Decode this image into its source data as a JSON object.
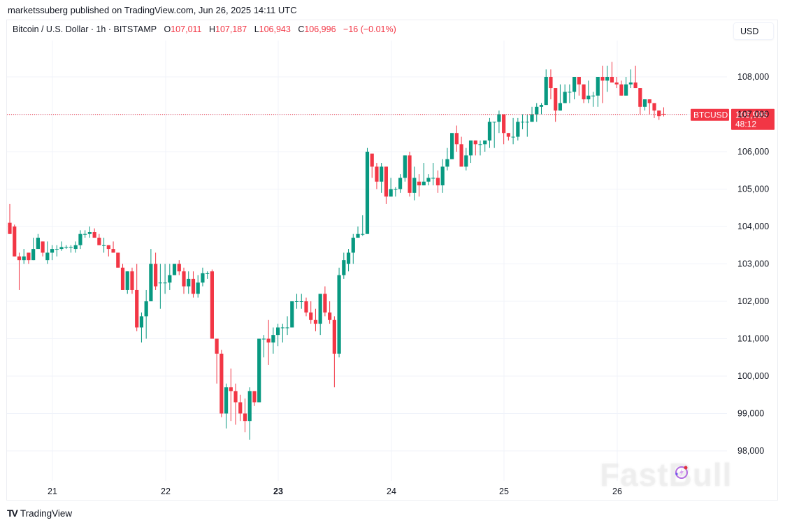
{
  "header": {
    "publisher_line": "marketssuberg published on TradingView.com, Jun 26, 2025 14:11 UTC"
  },
  "legend": {
    "symbol_line": "Bitcoin / U.S. Dollar · 1h · BITSTAMP",
    "open_label": "O",
    "open": "107,011",
    "high_label": "H",
    "high": "107,187",
    "low_label": "L",
    "low": "106,943",
    "close_label": "C",
    "close": "106,996",
    "change": "−16 (−0.01%)"
  },
  "currency_button": "USD",
  "price_tag": {
    "symbol": "BTCUSD",
    "price": "106,996",
    "countdown": "48:12"
  },
  "footer": {
    "brand": "TradingView",
    "logo": "TV"
  },
  "watermark": "FastBull",
  "colors": {
    "up": "#089981",
    "down": "#f23645",
    "grid": "#f0f3fa",
    "text": "#131722"
  },
  "chart_data": {
    "type": "candlestick",
    "title": "Bitcoin / U.S. Dollar · 1h · BITSTAMP",
    "xlabel": "",
    "ylabel": "USD",
    "ylim": [
      97200,
      108900
    ],
    "y_ticks": [
      98000,
      99000,
      100000,
      101000,
      102000,
      103000,
      104000,
      105000,
      106000,
      107000,
      108000
    ],
    "y_tick_labels": [
      "98,000",
      "99,000",
      "100,000",
      "101,000",
      "102,000",
      "103,000",
      "104,000",
      "105,000",
      "106,000",
      "107,000",
      "108,000"
    ],
    "x_ticks": [
      {
        "label": "21",
        "x": 75,
        "bold": false
      },
      {
        "label": "22",
        "x": 237,
        "bold": false
      },
      {
        "label": "23",
        "x": 398,
        "bold": true
      },
      {
        "label": "24",
        "x": 560,
        "bold": false
      },
      {
        "label": "25",
        "x": 721,
        "bold": false
      },
      {
        "label": "26",
        "x": 883,
        "bold": false
      }
    ],
    "grid": true,
    "last_price": 106996,
    "candle_start_x": 14,
    "candle_spacing": 6.73,
    "ohlc": [
      [
        104100,
        104600,
        103800,
        103800
      ],
      [
        104000,
        104050,
        103200,
        103200
      ],
      [
        103200,
        103300,
        102300,
        103100
      ],
      [
        103100,
        103400,
        103000,
        103200
      ],
      [
        103300,
        103300,
        103000,
        103100
      ],
      [
        103100,
        103700,
        103100,
        103400
      ],
      [
        103400,
        103800,
        103500,
        103700
      ],
      [
        103600,
        103600,
        103200,
        103300
      ],
      [
        103100,
        103600,
        103000,
        103300
      ],
      [
        103300,
        103500,
        103100,
        103400
      ],
      [
        103400,
        103500,
        103200,
        103400
      ],
      [
        103400,
        103600,
        103350,
        103450
      ],
      [
        103450,
        103500,
        103400,
        103450
      ],
      [
        103450,
        103500,
        103300,
        103450
      ],
      [
        103400,
        103600,
        103300,
        103500
      ],
      [
        103500,
        103900,
        103400,
        103800
      ],
      [
        103800,
        103900,
        103700,
        103800
      ],
      [
        103800,
        104000,
        103700,
        103850
      ],
      [
        103850,
        103950,
        103700,
        103700
      ],
      [
        103700,
        103800,
        103500,
        103500
      ],
      [
        103500,
        103700,
        103300,
        103500
      ],
      [
        103500,
        103500,
        103200,
        103400
      ],
      [
        103400,
        103600,
        103300,
        103300
      ],
      [
        103300,
        103300,
        102900,
        102900
      ],
      [
        102900,
        103000,
        102300,
        102300
      ],
      [
        102300,
        102800,
        102200,
        102800
      ],
      [
        102800,
        102900,
        102200,
        102300
      ],
      [
        102300,
        103000,
        101200,
        101300
      ],
      [
        101300,
        101700,
        100900,
        101600
      ],
      [
        101600,
        102300,
        101000,
        102000
      ],
      [
        102000,
        103400,
        102000,
        103000
      ],
      [
        103000,
        103300,
        102300,
        102400
      ],
      [
        102500,
        103000,
        101800,
        102500
      ],
      [
        102500,
        103000,
        102200,
        102500
      ],
      [
        102500,
        103000,
        102300,
        102700
      ],
      [
        102700,
        103000,
        102700,
        103000
      ],
      [
        103000,
        103100,
        102700,
        102800
      ],
      [
        102800,
        102900,
        102200,
        102400
      ],
      [
        102400,
        102800,
        102200,
        102600
      ],
      [
        102600,
        102800,
        102100,
        102200
      ],
      [
        102200,
        102700,
        102100,
        102500
      ],
      [
        102500,
        102900,
        102400,
        102750
      ],
      [
        102750,
        102800,
        102600,
        102750
      ],
      [
        102800,
        102850,
        101000,
        101000
      ],
      [
        101000,
        101000,
        99800,
        100600
      ],
      [
        100600,
        100700,
        98900,
        99000
      ],
      [
        99000,
        99800,
        98600,
        99700
      ],
      [
        99700,
        100200,
        98800,
        99600
      ],
      [
        99600,
        99800,
        98700,
        99300
      ],
      [
        99300,
        99500,
        98800,
        99000
      ],
      [
        99000,
        99400,
        98500,
        98800
      ],
      [
        98800,
        99700,
        98300,
        99600
      ],
      [
        99600,
        99600,
        99200,
        99300
      ],
      [
        99300,
        101000,
        99300,
        101000
      ],
      [
        101000,
        101100,
        100500,
        101000
      ],
      [
        101000,
        101500,
        100300,
        100900
      ],
      [
        100900,
        101300,
        100600,
        101100
      ],
      [
        101100,
        101400,
        100800,
        101300
      ],
      [
        101300,
        101400,
        100900,
        101300
      ],
      [
        101300,
        101600,
        101100,
        101300
      ],
      [
        101300,
        102000,
        101300,
        102000
      ],
      [
        102000,
        102200,
        101800,
        102000
      ],
      [
        102000,
        102200,
        101800,
        102000
      ],
      [
        102000,
        102100,
        101600,
        101700
      ],
      [
        101700,
        102000,
        101400,
        101500
      ],
      [
        101500,
        101800,
        101200,
        101400
      ],
      [
        101400,
        102100,
        101100,
        102200
      ],
      [
        102200,
        102400,
        101600,
        101700
      ],
      [
        101700,
        102000,
        101400,
        101500
      ],
      [
        101500,
        101600,
        99700,
        100600
      ],
      [
        100600,
        102900,
        100500,
        102700
      ],
      [
        102700,
        103300,
        102600,
        103100
      ],
      [
        103000,
        103400,
        102800,
        103300
      ],
      [
        103300,
        103800,
        103000,
        103700
      ],
      [
        103700,
        104000,
        103800,
        103800
      ],
      [
        103800,
        104300,
        103750,
        103800
      ],
      [
        103800,
        106100,
        103800,
        106000
      ],
      [
        105950,
        105900,
        105300,
        105600
      ],
      [
        105600,
        105700,
        105000,
        105200
      ],
      [
        105200,
        105700,
        104900,
        105600
      ],
      [
        105600,
        105600,
        104600,
        104800
      ],
      [
        104800,
        105300,
        104800,
        105000
      ],
      [
        105000,
        105050,
        104800,
        105000
      ],
      [
        105000,
        105400,
        104900,
        105300
      ],
      [
        105300,
        105900,
        105200,
        105900
      ],
      [
        105900,
        106000,
        104800,
        104900
      ],
      [
        104900,
        105600,
        104700,
        105300
      ],
      [
        105200,
        105400,
        104800,
        105100
      ],
      [
        105100,
        105700,
        105100,
        105200
      ],
      [
        105200,
        105400,
        105100,
        105300
      ],
      [
        105300,
        105700,
        105100,
        105300
      ],
      [
        105300,
        105500,
        104900,
        105100
      ],
      [
        105100,
        105800,
        104900,
        105600
      ],
      [
        105600,
        106100,
        105500,
        105800
      ],
      [
        105800,
        106500,
        105800,
        106500
      ],
      [
        106500,
        106700,
        106000,
        106200
      ],
      [
        106200,
        106400,
        105800,
        105600
      ],
      [
        105600,
        106100,
        105500,
        105900
      ],
      [
        105900,
        106300,
        105700,
        106300
      ],
      [
        106300,
        106300,
        105900,
        106200
      ],
      [
        106200,
        106300,
        105900,
        106200
      ],
      [
        106200,
        106300,
        106000,
        106300
      ],
      [
        106300,
        106900,
        106100,
        106800
      ],
      [
        106800,
        106800,
        106100,
        106800
      ],
      [
        106800,
        107100,
        106500,
        107000
      ],
      [
        107000,
        107000,
        106200,
        106500
      ],
      [
        106500,
        106500,
        106300,
        106400
      ],
      [
        106400,
        106900,
        106200,
        106400
      ],
      [
        106400,
        106900,
        106300,
        106800
      ],
      [
        106800,
        107000,
        106600,
        106800
      ],
      [
        106800,
        107000,
        106400,
        106800
      ],
      [
        106800,
        107200,
        106800,
        107000
      ],
      [
        107000,
        107300,
        106800,
        107200
      ],
      [
        107200,
        107300,
        107000,
        107250
      ],
      [
        107250,
        108200,
        107250,
        108000
      ],
      [
        108000,
        108200,
        107400,
        107700
      ],
      [
        107700,
        107700,
        106800,
        107100
      ],
      [
        107100,
        107800,
        107100,
        107300
      ],
      [
        107300,
        107800,
        107300,
        107600
      ],
      [
        107600,
        107800,
        107300,
        107600
      ],
      [
        107600,
        108000,
        107400,
        108000
      ],
      [
        108000,
        108000,
        107500,
        107800
      ],
      [
        107800,
        107800,
        107300,
        107400
      ],
      [
        107400,
        107900,
        107300,
        107500
      ],
      [
        107500,
        107600,
        107200,
        107500
      ],
      [
        107500,
        108000,
        107200,
        108000
      ],
      [
        108000,
        108300,
        107300,
        107900
      ],
      [
        107900,
        108300,
        107600,
        108000
      ],
      [
        108000,
        108400,
        107950,
        107850
      ],
      [
        107850,
        108000,
        107700,
        107800
      ],
      [
        107800,
        107900,
        107500,
        107500
      ],
      [
        107500,
        108000,
        107500,
        107800
      ],
      [
        107800,
        108200,
        107700,
        107850
      ],
      [
        107850,
        108300,
        107700,
        107700
      ],
      [
        107700,
        107700,
        107000,
        107200
      ],
      [
        107200,
        107400,
        107100,
        107400
      ],
      [
        107400,
        107400,
        107000,
        107300
      ],
      [
        107300,
        107300,
        106900,
        107100
      ],
      [
        107100,
        107100,
        106850,
        106950
      ],
      [
        107011,
        107187,
        106943,
        106996
      ]
    ]
  }
}
